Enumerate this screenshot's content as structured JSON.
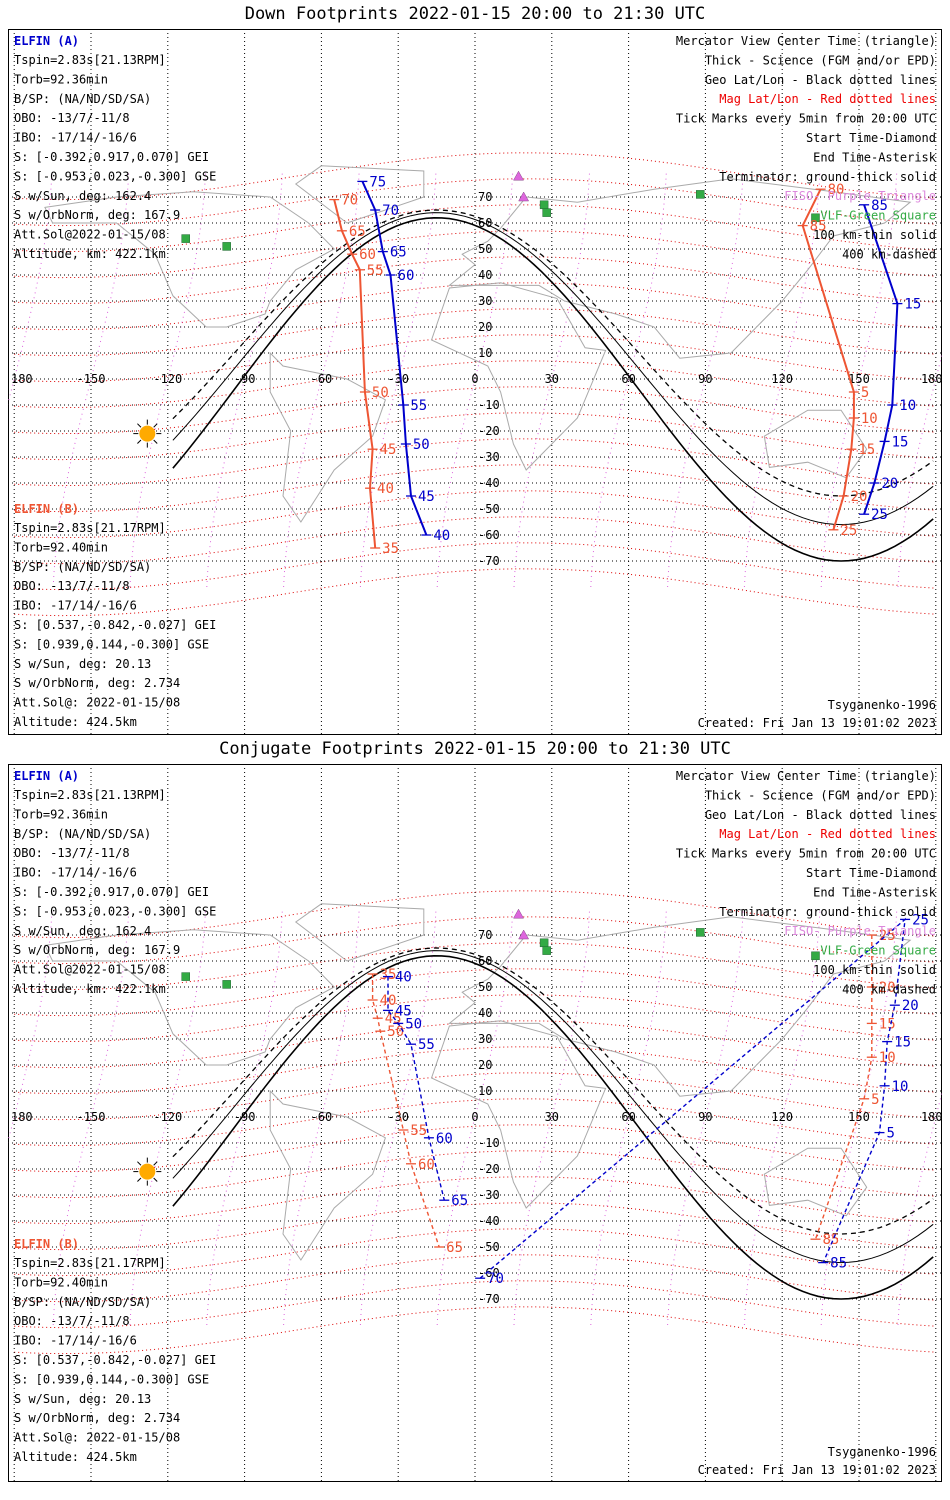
{
  "panels": [
    {
      "title": "Down Footprints 2022-01-15 20:00 to 21:30 UTC",
      "elfin_a": {
        "label": "ELFIN (A)",
        "lines": [
          "Tspin=2.83s[21.13RPM]",
          "Torb=92.36min",
          "B/SP: (NA/ND/SD/SA)",
          "OBO: -13/7/-11/8",
          "IBO: -17/14/-16/6",
          "S: [-0.392,0.917,0.070] GEI",
          "S: [-0.953,0.023,-0.300] GSE",
          "S w/Sun, deg: 162.4",
          "S w/OrbNorm, deg: 167.9",
          "Att.Sol@2022-01-15/08",
          "Altitude, km: 422.1km"
        ]
      },
      "elfin_b": {
        "label": "ELFIN (B)",
        "lines": [
          "Tspin=2.83s[21.17RPM]",
          "Torb=92.40min",
          "B/SP: (NA/ND/SD/SA)",
          "OBO: -13/7/-11/8",
          "IBO: -17/14/-16/6",
          "S: [0.537,-0.842,-0.027] GEI",
          "S: [0.939,0.144,-0.300] GSE",
          "S w/Sun, deg: 20.13",
          "S w/OrbNorm, deg: 2.734",
          "Att.Sol@: 2022-01-15/08",
          "Altitude: 424.5km"
        ]
      },
      "model": "Tsyganenko-1996",
      "created": "Created: Fri Jan 13 19:01:02 2023",
      "ticks_a": [
        {
          "lon": -44,
          "lat": 76,
          "label": "75"
        },
        {
          "lon": -39,
          "lat": 65,
          "label": "70"
        },
        {
          "lon": -36,
          "lat": 49,
          "label": "65"
        },
        {
          "lon": -33,
          "lat": 40,
          "label": "60"
        },
        {
          "lon": -28,
          "lat": -10,
          "label": "55"
        },
        {
          "lon": -27,
          "lat": -25,
          "label": "50"
        },
        {
          "lon": -25,
          "lat": -45,
          "label": "45"
        },
        {
          "lon": -19,
          "lat": -60,
          "label": "40"
        },
        {
          "lon": 152,
          "lat": 67,
          "label": "85"
        },
        {
          "lon": 165,
          "lat": 29,
          "label": "15"
        },
        {
          "lon": 163,
          "lat": -10,
          "label": "10"
        },
        {
          "lon": 160,
          "lat": -24,
          "label": "15"
        },
        {
          "lon": 156,
          "lat": -40,
          "label": "20"
        },
        {
          "lon": 152,
          "lat": -52,
          "label": "25"
        }
      ],
      "ticks_b": [
        {
          "lon": -55,
          "lat": 69,
          "label": "70"
        },
        {
          "lon": -52,
          "lat": 57,
          "label": "65"
        },
        {
          "lon": -48,
          "lat": 48,
          "label": "60"
        },
        {
          "lon": -45,
          "lat": 42,
          "label": "55"
        },
        {
          "lon": -43,
          "lat": -5,
          "label": "50"
        },
        {
          "lon": -40,
          "lat": -27,
          "label": "45"
        },
        {
          "lon": -41,
          "lat": -42,
          "label": "40"
        },
        {
          "lon": -39,
          "lat": -65,
          "label": "35"
        },
        {
          "lon": 135,
          "lat": 73,
          "label": "80"
        },
        {
          "lon": 128,
          "lat": 59,
          "label": "85"
        },
        {
          "lon": 148,
          "lat": -5,
          "label": "5"
        },
        {
          "lon": 148,
          "lat": -15,
          "label": "10"
        },
        {
          "lon": 147,
          "lat": -27,
          "label": "15"
        },
        {
          "lon": 144,
          "lat": -45,
          "label": "20"
        },
        {
          "lon": 140,
          "lat": -58,
          "label": "25"
        }
      ]
    },
    {
      "title": "Conjugate Footprints 2022-01-15 20:00 to 21:30 UTC",
      "elfin_a": {
        "label": "ELFIN (A)",
        "lines": [
          "Tspin=2.83s[21.13RPM]",
          "Torb=92.36min",
          "B/SP: (NA/ND/SD/SA)",
          "OBO: -13/7/-11/8",
          "IBO: -17/14/-16/6",
          "S: [-0.392,0.917,0.070] GEI",
          "S: [-0.953,0.023,-0.300] GSE",
          "S w/Sun, deg: 162.4",
          "S w/OrbNorm, deg: 167.9",
          "Att.Sol@2022-01-15/08",
          "Altitude, km: 422.1km"
        ]
      },
      "elfin_b": {
        "label": "ELFIN (B)",
        "lines": [
          "Tspin=2.83s[21.17RPM]",
          "Torb=92.40min",
          "B/SP: (NA/ND/SD/SA)",
          "OBO: -13/7/-11/8",
          "IBO: -17/14/-16/6",
          "S: [0.537,-0.842,-0.027] GEI",
          "S: [0.939,0.144,-0.300] GSE",
          "S w/Sun, deg: 20.13",
          "S w/OrbNorm, deg: 2.734",
          "Att.Sol@: 2022-01-15/08",
          "Altitude: 424.5km"
        ]
      },
      "model": "Tsyganenko-1996",
      "created": "Created: Fri Jan 13 19:01:02 2023",
      "ticks_a": [
        {
          "lon": -34,
          "lat": 54,
          "label": "40"
        },
        {
          "lon": -34,
          "lat": 41,
          "label": "45"
        },
        {
          "lon": -30,
          "lat": 36,
          "label": "50"
        },
        {
          "lon": -25,
          "lat": 28,
          "label": "55"
        },
        {
          "lon": -18,
          "lat": -8,
          "label": "60"
        },
        {
          "lon": -12,
          "lat": -32,
          "label": "65"
        },
        {
          "lon": 2,
          "lat": -62,
          "label": "70"
        },
        {
          "lon": 168,
          "lat": 76,
          "label": "25"
        },
        {
          "lon": 164,
          "lat": 43,
          "label": "20"
        },
        {
          "lon": 161,
          "lat": 29,
          "label": "15"
        },
        {
          "lon": 160,
          "lat": 12,
          "label": "10"
        },
        {
          "lon": 158,
          "lat": -6,
          "label": "5"
        },
        {
          "lon": 136,
          "lat": -56,
          "label": "85"
        }
      ],
      "ticks_b": [
        {
          "lon": -40,
          "lat": 55,
          "label": "35"
        },
        {
          "lon": -40,
          "lat": 45,
          "label": "40"
        },
        {
          "lon": -38,
          "lat": 38,
          "label": "45"
        },
        {
          "lon": -37,
          "lat": 33,
          "label": "50"
        },
        {
          "lon": -28,
          "lat": -5,
          "label": "55"
        },
        {
          "lon": -25,
          "lat": -18,
          "label": "60"
        },
        {
          "lon": -14,
          "lat": -50,
          "label": "65"
        },
        {
          "lon": 155,
          "lat": 70,
          "label": "25"
        },
        {
          "lon": 155,
          "lat": 50,
          "label": "20"
        },
        {
          "lon": 155,
          "lat": 36,
          "label": "15"
        },
        {
          "lon": 155,
          "lat": 23,
          "label": "10"
        },
        {
          "lon": 152,
          "lat": 7,
          "label": "5"
        },
        {
          "lon": 133,
          "lat": -47,
          "label": "85"
        }
      ]
    }
  ],
  "legend": [
    {
      "text": "Mercator View Center Time (triangle)",
      "color": "#000000"
    },
    {
      "text": "Thick - Science (FGM and/or EPD)",
      "color": "#000000"
    },
    {
      "text": "Geo Lat/Lon - Black dotted lines",
      "color": "#000000"
    },
    {
      "text": "Mag Lat/Lon - Red dotted lines",
      "color": "#ee0000"
    },
    {
      "text": "Tick Marks every 5min from 20:00 UTC",
      "color": "#000000"
    },
    {
      "text": "Start Time-Diamond",
      "color": "#000000"
    },
    {
      "text": "End Time-Asterisk",
      "color": "#000000"
    },
    {
      "text": "Terminator: ground-thick solid",
      "color": "#000000"
    },
    {
      "text": "FISO- Purple Triangle",
      "color": "#dd88dd"
    },
    {
      "text": "VLF-Green Square",
      "color": "#33aa44"
    },
    {
      "text": "100 km-thin solid",
      "color": "#000000"
    },
    {
      "text": "400 km-dashed",
      "color": "#000000"
    }
  ],
  "lon_ticks": [
    "-180",
    "-150",
    "-120",
    "-90",
    "-60",
    "-30",
    "0",
    "30",
    "60",
    "90",
    "120",
    "150",
    "180"
  ],
  "lat_ticks": [
    "70",
    "60",
    "50",
    "40",
    "30",
    "20",
    "10",
    "0",
    "-10",
    "-20",
    "-30",
    "-40",
    "-50",
    "-60",
    "-70"
  ],
  "colors": {
    "elfin_a": "#0000cc",
    "elfin_b": "#ee5533",
    "mag_grid": "#dd0000",
    "geo_grid": "#000000",
    "fiso": "#dd66dd",
    "vlf": "#33aa44",
    "sun": "#ffaa00"
  },
  "stations_vlf": [
    {
      "lon": -113,
      "lat": 54
    },
    {
      "lon": -97,
      "lat": 51
    },
    {
      "lon": 27,
      "lat": 67
    },
    {
      "lon": 28,
      "lat": 64
    },
    {
      "lon": 88,
      "lat": 71
    },
    {
      "lon": 133,
      "lat": 62
    }
  ],
  "stations_fiso": [
    {
      "lon": 17,
      "lat": 78
    },
    {
      "lon": 19,
      "lat": 70
    }
  ],
  "sun": {
    "lon": -128,
    "lat": -21
  }
}
